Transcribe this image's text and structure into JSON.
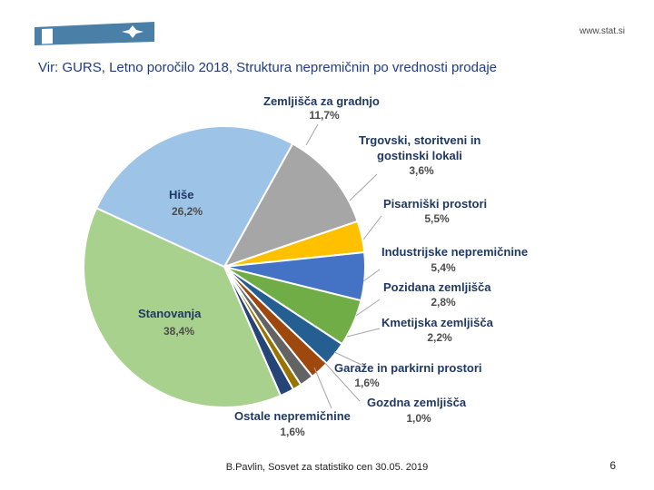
{
  "header": {
    "site_url": "www.stat.si",
    "source_text": "Vir: GURS, Letno poročilo 2018, Struktura nepremičnin po vrednosti prodaje"
  },
  "footer": {
    "text": "B.Pavlin, Sosvet za statistiko cen 30.05. 2019",
    "page_number": "6"
  },
  "colors": {
    "brand": "#4a7fa8",
    "label_name": "#1f3864",
    "label_value": "#4d4d4d"
  },
  "chart_data": {
    "type": "pie",
    "title": "",
    "start_angle_deg": 29,
    "direction": "clockwise",
    "series": [
      {
        "name": "Zemljišča za gradnjo",
        "value": 11.7,
        "label": "11,7%",
        "color": "#a6a6a6"
      },
      {
        "name": "Trgovski, storitveni in gostinski lokali",
        "value": 3.6,
        "label": "3,6%",
        "color": "#ffc000"
      },
      {
        "name": "Pisarniški prostori",
        "value": 5.5,
        "label": "5,5%",
        "color": "#4472c4"
      },
      {
        "name": "Industrijske nepremičnine",
        "value": 5.4,
        "label": "5,4%",
        "color": "#70ad47"
      },
      {
        "name": "Pozidana zemljišča",
        "value": 2.8,
        "label": "2,8%",
        "color": "#255e91"
      },
      {
        "name": "Kmetijska zemljišča",
        "value": 2.2,
        "label": "2,2%",
        "color": "#9e480e"
      },
      {
        "name": "Garaže in parkirni prostori",
        "value": 1.6,
        "label": "1,6%",
        "color": "#636363"
      },
      {
        "name": "Gozdna zemljišča",
        "value": 1.0,
        "label": "1,0%",
        "color": "#997300"
      },
      {
        "name": "Ostale nepremičnine",
        "value": 1.6,
        "label": "1,6%",
        "color": "#264478"
      },
      {
        "name": "Stanovanja",
        "value": 38.4,
        "label": "38,4%",
        "color": "#a9d18e"
      },
      {
        "name": "Hiše",
        "value": 26.2,
        "label": "26,2%",
        "color": "#9dc3e6"
      }
    ]
  }
}
